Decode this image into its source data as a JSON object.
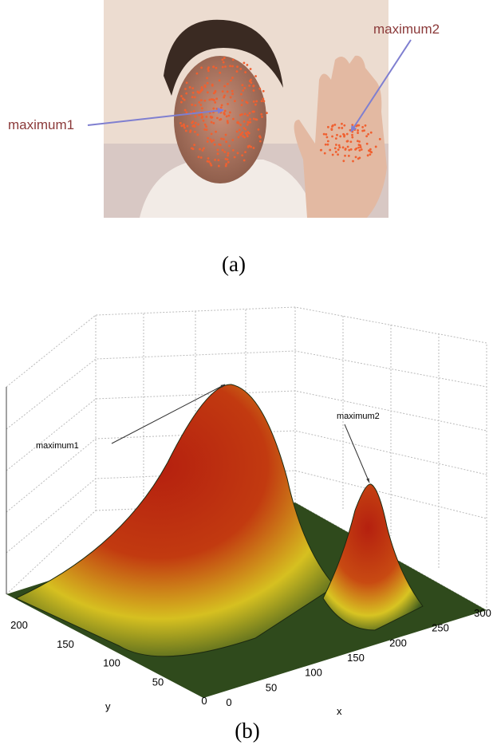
{
  "panel_a": {
    "labels": [
      "maximum1",
      "maximum2"
    ],
    "caption": "(a)"
  },
  "panel_b": {
    "labels": [
      "maximum1",
      "maximum2"
    ],
    "y_axis": {
      "label": "y",
      "ticks": [
        "200",
        "150",
        "100",
        "50",
        "0"
      ]
    },
    "x_axis": {
      "label": "x",
      "ticks": [
        "0",
        "50",
        "100",
        "150",
        "200",
        "250",
        "300"
      ]
    },
    "caption": "(b)"
  }
}
